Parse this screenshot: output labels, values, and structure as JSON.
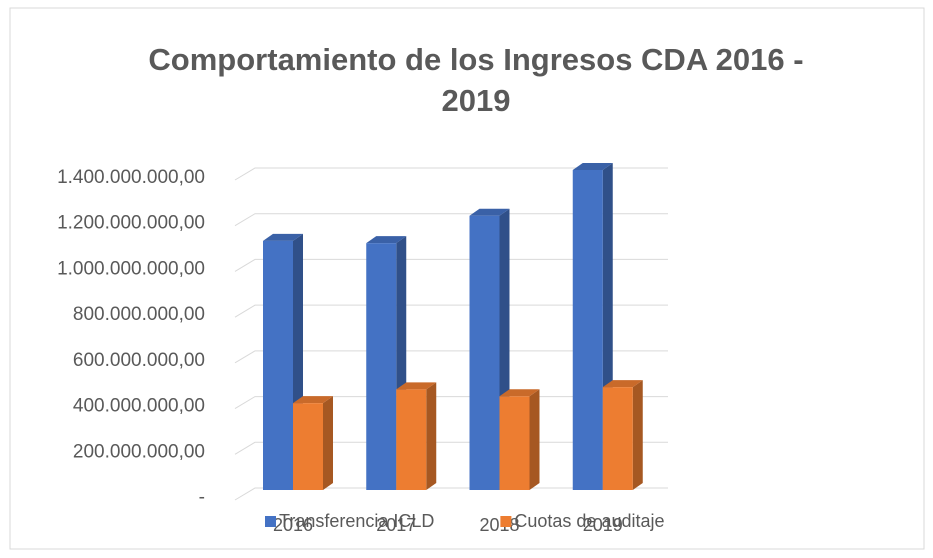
{
  "chart_data": {
    "type": "bar3d",
    "title": "Comportamiento de los Ingresos CDA 2016 -\n2019",
    "categories": [
      "2016",
      "2017",
      "2018",
      "2019"
    ],
    "series": [
      {
        "name": "Transferencia ICLD",
        "color": "#4472c4",
        "values": [
          1090000000,
          1080000000,
          1200000000,
          1400000000
        ]
      },
      {
        "name": "Cuotas de auditaje",
        "color": "#ed7d31",
        "values": [
          380000000,
          440000000,
          410000000,
          450000000
        ]
      }
    ],
    "ylim": [
      0,
      1400000000
    ],
    "yticks": [
      {
        "value": 0,
        "label": "-"
      },
      {
        "value": 200000000,
        "label": "200.000.000,00"
      },
      {
        "value": 400000000,
        "label": "400.000.000,00"
      },
      {
        "value": 600000000,
        "label": "600.000.000,00"
      },
      {
        "value": 800000000,
        "label": "800.000.000,00"
      },
      {
        "value": 1000000000,
        "label": "1.000.000.000,00"
      },
      {
        "value": 1200000000,
        "label": "1.200.000.000,00"
      },
      {
        "value": 1400000000,
        "label": "1.400.000.000,00"
      }
    ],
    "grid": true,
    "legend": "bottom"
  }
}
